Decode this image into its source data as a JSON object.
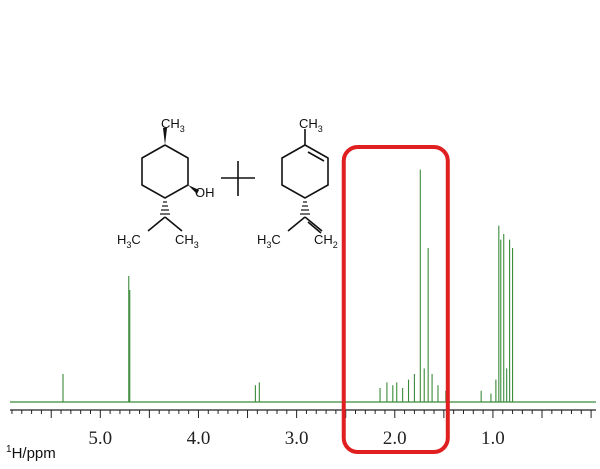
{
  "chart_data": {
    "type": "line",
    "title": "",
    "xlabel_sup": "1",
    "xlabel_main": "H/ppm",
    "x_reversed": true,
    "xlim": [
      5.92,
      -0.05
    ],
    "ylim": [
      0,
      1
    ],
    "x_ticks": [
      5.0,
      4.0,
      3.0,
      2.0,
      1.0
    ],
    "x_tick_labels": [
      "5.0",
      "4.0",
      "3.0",
      "2.0",
      "1.0"
    ],
    "minor_tick_step": 0.1,
    "colors": {
      "spectrum": "#3a8a3a",
      "highlight": "#e02020",
      "axis": "#222222"
    },
    "peaks": [
      {
        "x": 5.38,
        "y": 0.1
      },
      {
        "x": 4.71,
        "y": 0.45
      },
      {
        "x": 4.7,
        "y": 0.4
      },
      {
        "x": 3.42,
        "y": 0.06
      },
      {
        "x": 3.38,
        "y": 0.07
      },
      {
        "x": 2.15,
        "y": 0.05
      },
      {
        "x": 2.08,
        "y": 0.07
      },
      {
        "x": 2.02,
        "y": 0.06
      },
      {
        "x": 1.98,
        "y": 0.07
      },
      {
        "x": 1.92,
        "y": 0.05
      },
      {
        "x": 1.86,
        "y": 0.08
      },
      {
        "x": 1.8,
        "y": 0.1
      },
      {
        "x": 1.74,
        "y": 0.83
      },
      {
        "x": 1.7,
        "y": 0.12
      },
      {
        "x": 1.66,
        "y": 0.55
      },
      {
        "x": 1.62,
        "y": 0.1
      },
      {
        "x": 1.56,
        "y": 0.06
      },
      {
        "x": 1.48,
        "y": 0.04
      },
      {
        "x": 1.12,
        "y": 0.04
      },
      {
        "x": 1.02,
        "y": 0.03
      },
      {
        "x": 0.97,
        "y": 0.08
      },
      {
        "x": 0.94,
        "y": 0.63
      },
      {
        "x": 0.92,
        "y": 0.58
      },
      {
        "x": 0.89,
        "y": 0.6
      },
      {
        "x": 0.86,
        "y": 0.12
      },
      {
        "x": 0.83,
        "y": 0.58
      },
      {
        "x": 0.8,
        "y": 0.55
      }
    ],
    "highlight_region": {
      "x_from": 2.52,
      "x_to": 1.46
    }
  },
  "structures": {
    "menthol": {
      "methyl_label": "CH",
      "methyl_sub": "3",
      "hydroxyl_label": "OH",
      "left_methyl_label_main": "H",
      "left_methyl_label_sub": "3",
      "left_methyl_label_c": "C",
      "right_methyl_label": "CH",
      "right_methyl_sub": "3"
    },
    "plus_sign": "+",
    "limonene": {
      "methyl_label": "CH",
      "methyl_sub": "3",
      "left_methyl_label_main": "H",
      "left_methyl_label_sub": "3",
      "left_methyl_label_c": "C",
      "methylene_label": "CH",
      "methylene_sub": "2"
    }
  }
}
